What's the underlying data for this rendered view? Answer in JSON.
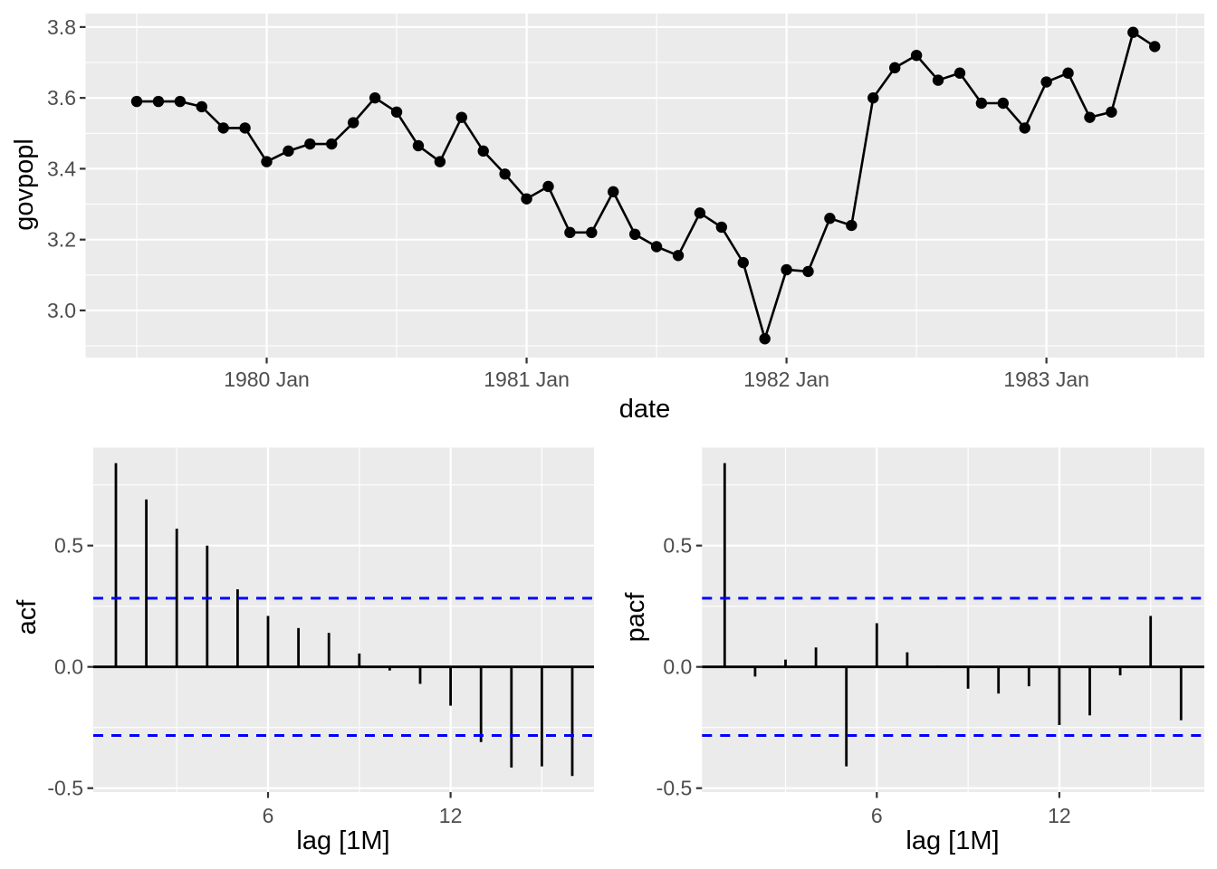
{
  "figure": {
    "kind": "ggplot time-series display (series + acf + pacf)",
    "colors": {
      "background": "#FFFFFF",
      "panel_background": "#EBEBEB",
      "gridline": "#FFFFFF",
      "axis_tick_text": "#4D4D4D",
      "axis_title_text": "#000000",
      "series": "#000000",
      "confidence_line": "#0000FF",
      "tick_mark": "#333333"
    }
  },
  "chart_data": [
    {
      "id": "timeseries",
      "type": "line",
      "title": "",
      "xlabel": "date",
      "ylabel": "govpopl",
      "marker": "filled-circle",
      "grid": "major+minor white on grey",
      "x": [
        "1979 Jul",
        "1979 Aug",
        "1979 Sep",
        "1979 Oct",
        "1979 Nov",
        "1979 Dec",
        "1980 Jan",
        "1980 Feb",
        "1980 Mar",
        "1980 Apr",
        "1980 May",
        "1980 Jun",
        "1980 Jul",
        "1980 Aug",
        "1980 Sep",
        "1980 Oct",
        "1980 Nov",
        "1980 Dec",
        "1981 Jan",
        "1981 Feb",
        "1981 Mar",
        "1981 Apr",
        "1981 May",
        "1981 Jun",
        "1981 Jul",
        "1981 Aug",
        "1981 Sep",
        "1981 Oct",
        "1981 Nov",
        "1981 Dec",
        "1982 Jan",
        "1982 Feb",
        "1982 Mar",
        "1982 Apr",
        "1982 May",
        "1982 Jun",
        "1982 Jul",
        "1982 Aug",
        "1982 Sep",
        "1982 Oct",
        "1982 Nov",
        "1982 Dec",
        "1983 Jan",
        "1983 Feb",
        "1983 Mar",
        "1983 Apr",
        "1983 May",
        "1983 Jun"
      ],
      "values": [
        3.59,
        3.59,
        3.59,
        3.575,
        3.515,
        3.515,
        3.42,
        3.45,
        3.47,
        3.47,
        3.53,
        3.6,
        3.56,
        3.465,
        3.42,
        3.545,
        3.45,
        3.385,
        3.315,
        3.35,
        3.22,
        3.22,
        3.335,
        3.215,
        3.18,
        3.155,
        3.275,
        3.235,
        3.135,
        2.92,
        3.115,
        3.11,
        3.26,
        3.24,
        3.6,
        3.685,
        3.72,
        3.65,
        3.67,
        3.585,
        3.585,
        3.515,
        3.645,
        3.67,
        3.545,
        3.56,
        3.785,
        3.745
      ],
      "ylim": [
        2.867,
        3.838
      ],
      "y_tick_labels": [
        "3.8",
        "3.6",
        "3.4",
        "3.2",
        "3.0"
      ],
      "y_tick_values": [
        3.8,
        3.6,
        3.4,
        3.2,
        3.0
      ],
      "y_minor_values": [
        3.7,
        3.5,
        3.3,
        3.1,
        2.9
      ],
      "x_tick_labels": [
        "1980 Jan",
        "1981 Jan",
        "1982 Jan",
        "1983 Jan"
      ],
      "x_tick_month_index": [
        6,
        18,
        30,
        42
      ],
      "x_minor_month_index": [
        0,
        12,
        24,
        36,
        48
      ]
    },
    {
      "id": "acf",
      "type": "bar",
      "title": "",
      "xlabel": "lag [1M]",
      "ylabel": "acf",
      "lags": [
        1,
        2,
        3,
        4,
        5,
        6,
        7,
        8,
        9,
        10,
        11,
        12,
        13,
        14,
        15,
        16
      ],
      "values": [
        0.84,
        0.69,
        0.57,
        0.5,
        0.32,
        0.21,
        0.16,
        0.14,
        0.055,
        -0.015,
        -0.07,
        -0.16,
        -0.31,
        -0.415,
        -0.41,
        -0.45
      ],
      "confidence_bound": 0.283,
      "confidence_style": "blue dashed horizontal lines at +0.283 and -0.283",
      "ylim": [
        -0.52,
        0.9
      ],
      "y_tick_labels": [
        "0.5",
        "0.0",
        "-0.5"
      ],
      "y_tick_values": [
        0.5,
        0.0,
        -0.5
      ],
      "y_minor_values": [
        0.75,
        0.25,
        -0.25
      ],
      "x_tick_labels": [
        "6",
        "12"
      ],
      "x_tick_values": [
        6,
        12
      ],
      "x_minor_values": [
        3,
        9,
        15
      ]
    },
    {
      "id": "pacf",
      "type": "bar",
      "title": "",
      "xlabel": "lag [1M]",
      "ylabel": "pacf",
      "lags": [
        1,
        2,
        3,
        4,
        5,
        6,
        7,
        8,
        9,
        10,
        11,
        12,
        13,
        14,
        15,
        16
      ],
      "values": [
        0.84,
        -0.04,
        0.03,
        0.08,
        -0.41,
        0.18,
        0.06,
        0.005,
        -0.09,
        -0.11,
        -0.08,
        -0.24,
        -0.2,
        -0.035,
        0.21,
        -0.22
      ],
      "confidence_bound": 0.283,
      "confidence_style": "blue dashed horizontal lines at +0.283 and -0.283",
      "ylim": [
        -0.52,
        0.9
      ],
      "y_tick_labels": [
        "0.5",
        "0.0",
        "-0.5"
      ],
      "y_tick_values": [
        0.5,
        0.0,
        -0.5
      ],
      "y_minor_values": [
        0.75,
        0.25,
        -0.25
      ],
      "x_tick_labels": [
        "6",
        "12"
      ],
      "x_tick_values": [
        6,
        12
      ],
      "x_minor_values": [
        3,
        9,
        15
      ]
    }
  ]
}
